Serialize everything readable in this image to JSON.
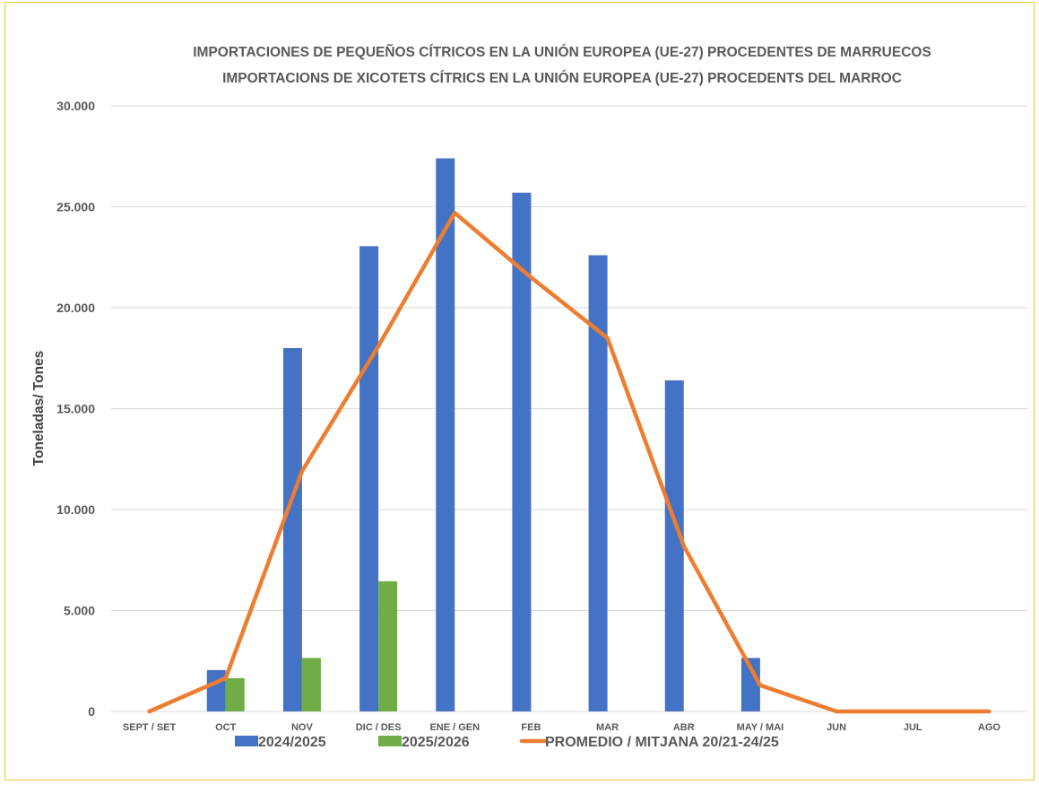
{
  "chart_data": {
    "type": "bar",
    "title": [
      "IMPORTACIONES DE PEQUEÑOS CÍTRICOS EN LA UNIÓN EUROPEA (UE-27) PROCEDENTES DE MARRUECOS",
      "IMPORTACIONS DE XICOTETS CÍTRICS EN LA UNIÓN EUROPEA (UE-27) PROCEDENTS DEL MARROC"
    ],
    "ylabel": "Toneladas/ Tones",
    "xlabel": "",
    "ylim": [
      0,
      30000
    ],
    "y_ticks": [
      0,
      5000,
      10000,
      15000,
      20000,
      25000,
      30000
    ],
    "y_tick_labels": [
      "0",
      "5.000",
      "10.000",
      "15.000",
      "20.000",
      "25.000",
      "30.000"
    ],
    "grid": true,
    "legend_position": "bottom",
    "categories": [
      "SEPT / SET",
      "OCT",
      "NOV",
      "DIC / DES",
      "ENE / GEN",
      "FEB",
      "MAR",
      "ABR",
      "MAY / MAI",
      "JUN",
      "JUL",
      "AGO"
    ],
    "series": [
      {
        "name": "2024/2025",
        "type": "bar",
        "color": "#4472c4",
        "values": [
          0,
          2050,
          18000,
          23050,
          27400,
          25700,
          22600,
          16400,
          2650,
          0,
          0,
          0
        ]
      },
      {
        "name": "2025/2026",
        "type": "bar",
        "color": "#70ad47",
        "values": [
          0,
          1650,
          2650,
          6450,
          null,
          null,
          null,
          null,
          null,
          null,
          null,
          null
        ]
      },
      {
        "name": "PROMEDIO / MITJANA 20/21-24/25",
        "type": "line",
        "color": "#ed7d31",
        "values": [
          0,
          1650,
          11900,
          18100,
          24700,
          21500,
          18500,
          8200,
          1300,
          0,
          0,
          0
        ]
      }
    ]
  }
}
